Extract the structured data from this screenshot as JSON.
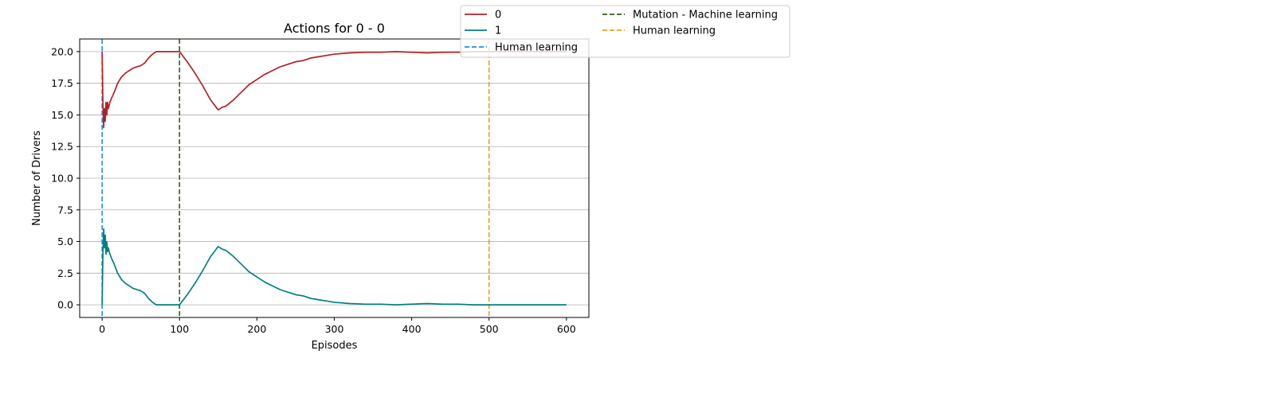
{
  "chart_data": {
    "type": "line",
    "title": "Actions for 0 - 0",
    "xlabel": "Episodes",
    "ylabel": "Number of Drivers",
    "xlim": [
      -29,
      629
    ],
    "ylim": [
      -1.0,
      21.0
    ],
    "xticks": [
      0,
      100,
      200,
      300,
      400,
      500,
      600
    ],
    "xtick_labels": [
      "0",
      "100",
      "200",
      "300",
      "400",
      "500",
      "600"
    ],
    "yticks": [
      0,
      2.5,
      5,
      7.5,
      10,
      12.5,
      15,
      17.5,
      20
    ],
    "ytick_labels": [
      "0.0",
      "2.5",
      "5.0",
      "7.5",
      "10.0",
      "12.5",
      "15.0",
      "17.5",
      "20.0"
    ],
    "grid": "horizontal",
    "legend_position": "top-right, outside plot",
    "series": [
      {
        "name": "0",
        "color": "#b22222",
        "style": "solid",
        "points": [
          [
            0,
            20.0
          ],
          [
            1,
            16.0
          ],
          [
            2,
            14.0
          ],
          [
            3,
            15.5
          ],
          [
            4,
            14.5
          ],
          [
            5,
            16.0
          ],
          [
            6,
            15.0
          ],
          [
            7,
            16.0
          ],
          [
            8,
            15.5
          ],
          [
            10,
            16.0
          ],
          [
            12,
            16.3
          ],
          [
            15,
            16.7
          ],
          [
            20,
            17.5
          ],
          [
            25,
            18.0
          ],
          [
            30,
            18.3
          ],
          [
            40,
            18.7
          ],
          [
            50,
            18.9
          ],
          [
            55,
            19.1
          ],
          [
            60,
            19.5
          ],
          [
            65,
            19.8
          ],
          [
            70,
            20.0
          ],
          [
            80,
            20.0
          ],
          [
            90,
            20.0
          ],
          [
            100,
            20.0
          ],
          [
            105,
            19.6
          ],
          [
            110,
            19.2
          ],
          [
            120,
            18.3
          ],
          [
            130,
            17.3
          ],
          [
            140,
            16.2
          ],
          [
            150,
            15.4
          ],
          [
            155,
            15.6
          ],
          [
            160,
            15.7
          ],
          [
            170,
            16.2
          ],
          [
            180,
            16.8
          ],
          [
            190,
            17.4
          ],
          [
            200,
            17.8
          ],
          [
            210,
            18.2
          ],
          [
            220,
            18.5
          ],
          [
            230,
            18.8
          ],
          [
            240,
            19.0
          ],
          [
            250,
            19.2
          ],
          [
            260,
            19.3
          ],
          [
            270,
            19.5
          ],
          [
            280,
            19.6
          ],
          [
            290,
            19.7
          ],
          [
            300,
            19.8
          ],
          [
            320,
            19.9
          ],
          [
            340,
            19.95
          ],
          [
            360,
            19.95
          ],
          [
            380,
            20.0
          ],
          [
            400,
            19.95
          ],
          [
            420,
            19.9
          ],
          [
            440,
            19.95
          ],
          [
            460,
            19.95
          ],
          [
            480,
            20.0
          ],
          [
            500,
            20.0
          ],
          [
            520,
            20.0
          ],
          [
            540,
            20.0
          ],
          [
            560,
            20.0
          ],
          [
            580,
            20.0
          ],
          [
            600,
            20.0
          ]
        ]
      },
      {
        "name": "1",
        "color": "#008080",
        "style": "solid",
        "points": [
          [
            0,
            0.0
          ],
          [
            1,
            4.0
          ],
          [
            2,
            6.0
          ],
          [
            3,
            4.5
          ],
          [
            4,
            5.5
          ],
          [
            5,
            4.0
          ],
          [
            6,
            5.0
          ],
          [
            7,
            4.2
          ],
          [
            8,
            4.5
          ],
          [
            10,
            4.0
          ],
          [
            12,
            3.7
          ],
          [
            15,
            3.3
          ],
          [
            20,
            2.5
          ],
          [
            25,
            2.0
          ],
          [
            30,
            1.7
          ],
          [
            40,
            1.3
          ],
          [
            50,
            1.1
          ],
          [
            55,
            0.9
          ],
          [
            60,
            0.5
          ],
          [
            65,
            0.2
          ],
          [
            70,
            0.0
          ],
          [
            80,
            0.0
          ],
          [
            90,
            0.0
          ],
          [
            100,
            0.0
          ],
          [
            105,
            0.4
          ],
          [
            110,
            0.8
          ],
          [
            120,
            1.7
          ],
          [
            130,
            2.7
          ],
          [
            140,
            3.8
          ],
          [
            150,
            4.6
          ],
          [
            155,
            4.4
          ],
          [
            160,
            4.3
          ],
          [
            170,
            3.8
          ],
          [
            180,
            3.2
          ],
          [
            190,
            2.6
          ],
          [
            200,
            2.2
          ],
          [
            210,
            1.8
          ],
          [
            220,
            1.5
          ],
          [
            230,
            1.2
          ],
          [
            240,
            1.0
          ],
          [
            250,
            0.8
          ],
          [
            260,
            0.7
          ],
          [
            270,
            0.5
          ],
          [
            280,
            0.4
          ],
          [
            290,
            0.3
          ],
          [
            300,
            0.2
          ],
          [
            320,
            0.1
          ],
          [
            340,
            0.05
          ],
          [
            360,
            0.05
          ],
          [
            380,
            0.0
          ],
          [
            400,
            0.05
          ],
          [
            420,
            0.1
          ],
          [
            440,
            0.05
          ],
          [
            460,
            0.05
          ],
          [
            480,
            0.0
          ],
          [
            500,
            0.0
          ],
          [
            520,
            0.0
          ],
          [
            540,
            0.0
          ],
          [
            560,
            0.0
          ],
          [
            580,
            0.0
          ],
          [
            600,
            0.0
          ]
        ]
      }
    ],
    "vlines": [
      {
        "name": "Human learning",
        "x": 0,
        "color": "#1f8ff0",
        "style": "dashed"
      },
      {
        "name": "Mutation - Machine learning",
        "x": 100,
        "color": "#3a5a1a",
        "style": "dashed"
      },
      {
        "name": "Human learning",
        "x": 500,
        "color": "#e0a020",
        "style": "dashed"
      }
    ]
  }
}
